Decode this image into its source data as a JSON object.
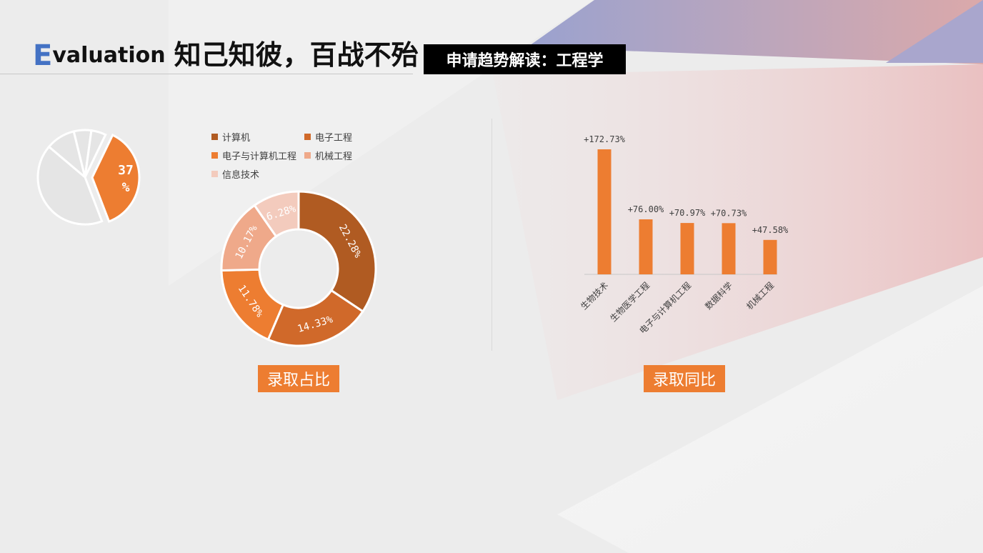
{
  "header": {
    "title_initial": "E",
    "title_rest": "valuation",
    "title_cn": "知己知彼，百战不殆",
    "subtitle": "申请趋势解读：工程学"
  },
  "deco_pie": {
    "label": "37\n%",
    "value": 37
  },
  "colors": {
    "accent": "#ed7d31",
    "dark_brown": "#b05b22",
    "mid_brown": "#d0692a",
    "light_salmon": "#efa98a",
    "pale": "#f3cbbd",
    "deco_grey": "#e5e5e5"
  },
  "labels": {
    "donut_label": "录取占比",
    "bar_label": "录取同比"
  },
  "chart_data": [
    {
      "type": "pie",
      "title": "",
      "categories": [
        "计算机",
        "电子工程",
        "电子与计算机工程",
        "机械工程",
        "信息技术"
      ],
      "values": [
        22.28,
        14.33,
        11.78,
        10.17,
        6.28
      ],
      "data_labels": [
        "22.28%",
        "14.33%",
        "11.78%",
        "10.17%",
        "6.28%"
      ],
      "colors": [
        "#b05b22",
        "#d0692a",
        "#ed7d31",
        "#efa98a",
        "#f3cbbd"
      ],
      "legend": "top"
    },
    {
      "type": "bar",
      "title": "",
      "categories": [
        "生物技术",
        "生物医学工程",
        "电子与计算机工程",
        "数据科学",
        "机械工程"
      ],
      "values": [
        172.73,
        76.0,
        70.97,
        70.73,
        47.58
      ],
      "data_labels": [
        "+172.73%",
        "+76.00%",
        "+70.97%",
        "+70.73%",
        "+47.58%"
      ],
      "xlabel": "",
      "ylabel": "",
      "ylim": [
        0,
        172.73
      ],
      "grid": false
    }
  ]
}
